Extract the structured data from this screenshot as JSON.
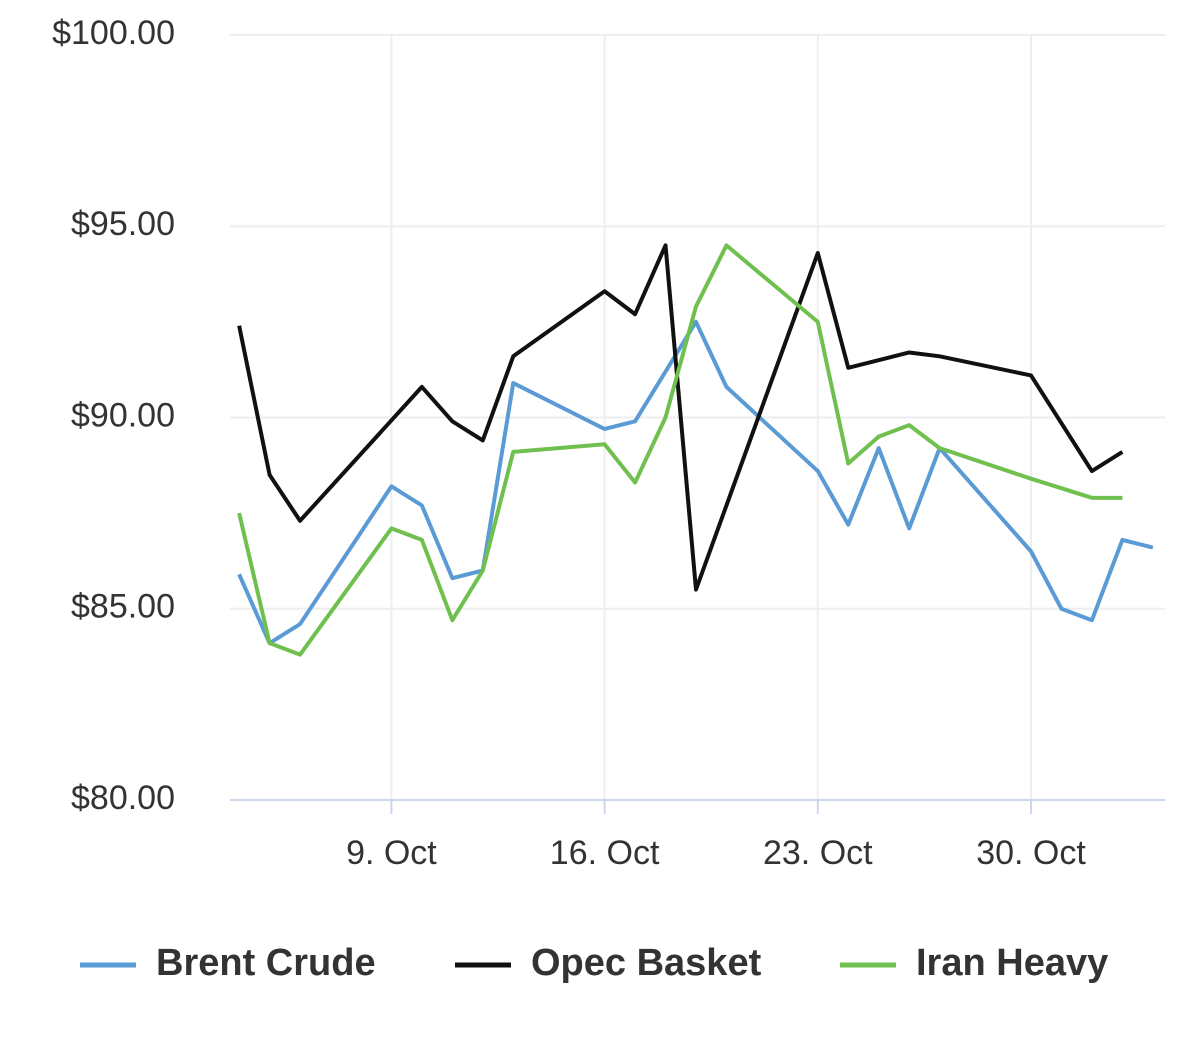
{
  "chart_data": {
    "type": "line",
    "xlim": [
      3.7,
      34.4
    ],
    "xticks": [
      {
        "value": 9,
        "label": "9. Oct"
      },
      {
        "value": 16,
        "label": "16. Oct"
      },
      {
        "value": 23,
        "label": "23. Oct"
      },
      {
        "value": 30,
        "label": "30. Oct"
      }
    ],
    "ylim": [
      80,
      100
    ],
    "yticks": [
      {
        "value": 80,
        "label": "$80.00"
      },
      {
        "value": 85,
        "label": "$85.00"
      },
      {
        "value": 90,
        "label": "$90.00"
      },
      {
        "value": 95,
        "label": "$95.00"
      },
      {
        "value": 100,
        "label": "$100.00"
      }
    ],
    "grid": true,
    "legend": "bottom",
    "series": [
      {
        "name": "Brent Crude",
        "color": "#5b9bd5",
        "x": [
          4,
          5,
          6,
          9,
          10,
          11,
          12,
          13,
          16,
          17,
          19,
          20,
          23,
          24,
          25,
          26,
          27,
          30,
          31,
          32,
          33,
          34
        ],
        "values": [
          85.9,
          84.1,
          84.6,
          88.2,
          87.7,
          85.8,
          86.0,
          90.9,
          89.7,
          89.9,
          92.5,
          90.8,
          88.6,
          87.2,
          89.2,
          87.1,
          89.2,
          86.5,
          85.0,
          84.7,
          86.8,
          86.6
        ]
      },
      {
        "name": "Opec Basket",
        "color": "#111111",
        "x": [
          4,
          5,
          6,
          10,
          11,
          12,
          13,
          16,
          17,
          18,
          19,
          23,
          24,
          26,
          27,
          30,
          32,
          33
        ],
        "values": [
          92.4,
          88.5,
          87.3,
          90.8,
          89.9,
          89.4,
          91.6,
          93.3,
          92.7,
          94.5,
          85.5,
          94.3,
          91.3,
          91.7,
          91.6,
          91.1,
          88.6,
          89.1
        ]
      },
      {
        "name": "Iran Heavy",
        "color": "#70c050",
        "x": [
          4,
          5,
          6,
          9,
          10,
          11,
          12,
          13,
          16,
          17,
          18,
          19,
          20,
          23,
          24,
          25,
          26,
          27,
          30,
          32,
          33
        ],
        "values": [
          87.5,
          84.1,
          83.8,
          87.1,
          86.8,
          84.7,
          86.0,
          89.1,
          89.3,
          88.3,
          90.0,
          92.9,
          94.5,
          92.5,
          88.8,
          89.5,
          89.8,
          89.2,
          88.4,
          87.9,
          87.9
        ]
      }
    ]
  }
}
